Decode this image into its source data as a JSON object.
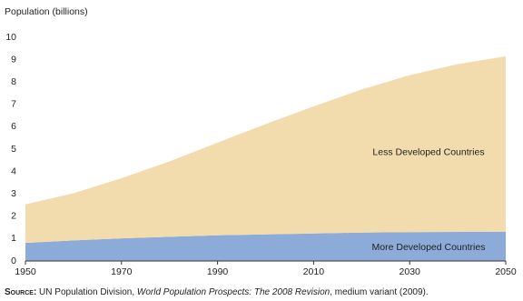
{
  "chart_data": {
    "type": "stacked_area",
    "y_label": "Population (billions)",
    "x": [
      1950,
      1960,
      1970,
      1980,
      1990,
      2000,
      2010,
      2020,
      2030,
      2040,
      2050
    ],
    "series": [
      {
        "name": "More Developed Countries",
        "color": "#8dabd9",
        "values": [
          0.81,
          0.92,
          1.01,
          1.08,
          1.15,
          1.19,
          1.23,
          1.27,
          1.29,
          1.3,
          1.31
        ]
      },
      {
        "name": "Less Developed Countries",
        "color": "#f2dbad",
        "values": [
          1.72,
          2.11,
          2.69,
          3.37,
          4.14,
          4.93,
          5.68,
          6.4,
          7.02,
          7.5,
          7.84
        ]
      }
    ],
    "xlim": [
      1950,
      2050
    ],
    "xticks": [
      1950,
      1970,
      1990,
      2010,
      2030,
      2050
    ],
    "ylim": [
      0,
      10
    ],
    "yticks": [
      0,
      1,
      2,
      3,
      4,
      5,
      6,
      7,
      8,
      9,
      10
    ],
    "source": {
      "label": "Source:",
      "text": " UN Population Division, ",
      "title": "World Population Prospects: The 2008 Revision",
      "tail": ", medium variant (2009)."
    }
  }
}
